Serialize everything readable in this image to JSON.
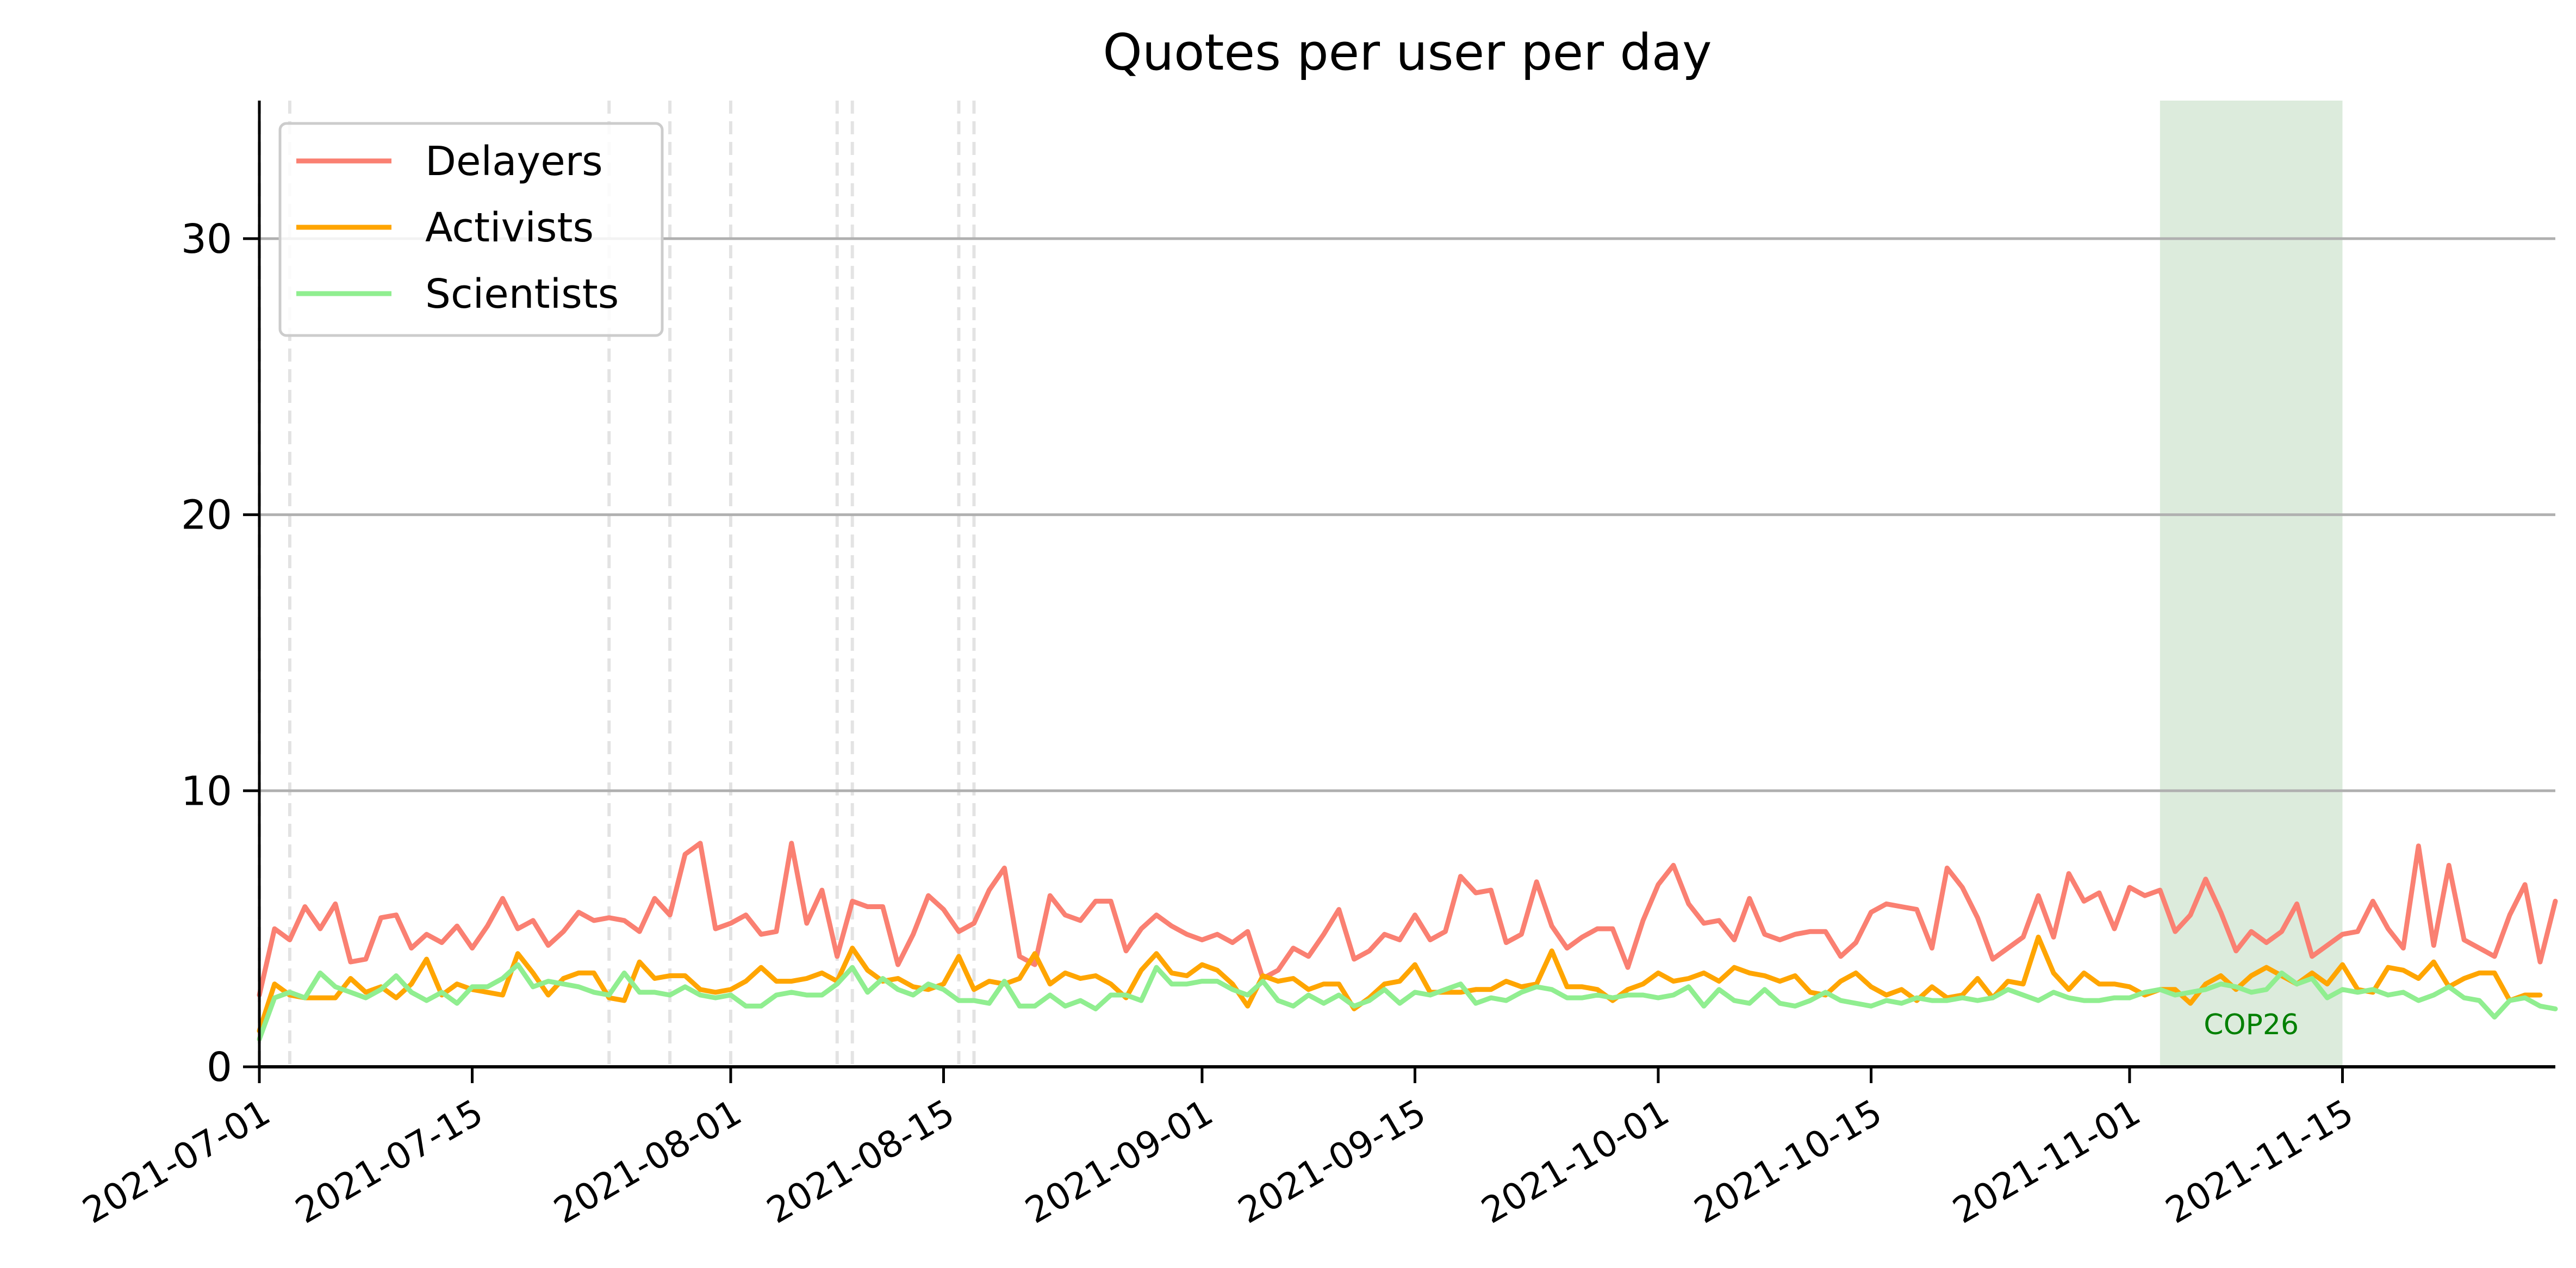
{
  "chart_data": {
    "type": "line",
    "title": "Quotes per user per day",
    "xlabel": "",
    "ylabel": "",
    "x_start": "2021-07-01",
    "x_end": "2021-11-29",
    "x_ticks": [
      "2021-07-01",
      "2021-07-15",
      "2021-08-01",
      "2021-08-15",
      "2021-09-01",
      "2021-09-15",
      "2021-10-01",
      "2021-10-15",
      "2021-11-01",
      "2021-11-15"
    ],
    "ylim": [
      0,
      35
    ],
    "y_ticks": [
      0,
      10,
      20,
      30
    ],
    "grid": "horizontal",
    "legend_position": "top-left",
    "colors": {
      "Delayers": "#fa8072",
      "Activists": "#ffa500",
      "Scientists": "#90ee90",
      "highlight": "#dcebdc",
      "annotation": "#008000"
    },
    "highlight_span": {
      "start": "2021-11-03",
      "end": "2021-11-15",
      "label": "COP26"
    },
    "vertical_markers": [
      "2021-07-01",
      "2021-07-03",
      "2021-07-24",
      "2021-07-28",
      "2021-08-01",
      "2021-08-08",
      "2021-08-09",
      "2021-08-16",
      "2021-08-17"
    ],
    "series": [
      {
        "name": "Delayers",
        "values": [
          2.6,
          5.0,
          4.6,
          5.8,
          5.0,
          5.9,
          3.8,
          3.9,
          5.4,
          5.5,
          4.3,
          4.8,
          4.5,
          5.1,
          4.3,
          5.1,
          6.1,
          5.0,
          5.3,
          4.4,
          4.9,
          5.6,
          5.3,
          5.4,
          5.3,
          4.9,
          6.1,
          5.5,
          7.7,
          8.1,
          5.0,
          5.2,
          5.5,
          4.8,
          4.9,
          8.1,
          5.2,
          6.4,
          4.0,
          6.0,
          5.8,
          5.8,
          3.7,
          4.8,
          6.2,
          5.7,
          4.9,
          5.2,
          6.4,
          7.2,
          4.0,
          3.7,
          6.2,
          5.5,
          5.3,
          6.0,
          6.0,
          4.2,
          5.0,
          5.5,
          5.1,
          4.8,
          4.6,
          4.8,
          4.5,
          4.9,
          3.2,
          3.5,
          4.3,
          4.0,
          4.8,
          5.7,
          3.9,
          4.2,
          4.8,
          4.6,
          5.5,
          4.6,
          4.9,
          6.9,
          6.3,
          6.4,
          4.5,
          4.8,
          6.7,
          5.1,
          4.3,
          4.7,
          5.0,
          5.0,
          3.6,
          5.3,
          6.6,
          7.3,
          5.9,
          5.2,
          5.3,
          4.6,
          6.1,
          4.8,
          4.6,
          4.8,
          4.9,
          4.9,
          4.0,
          4.5,
          5.6,
          5.9,
          5.8,
          5.7,
          4.3,
          7.2,
          6.5,
          5.4,
          3.9,
          4.3,
          4.7,
          6.2,
          4.7,
          7.0,
          6.0,
          6.3,
          5.0,
          6.5,
          6.2,
          6.4,
          4.9,
          5.5,
          6.8,
          5.6,
          4.2,
          4.9,
          4.5,
          4.9,
          5.9,
          4.0,
          4.4,
          4.8,
          4.9,
          6.0,
          5.0,
          4.3,
          8.0,
          4.4,
          7.3,
          4.6,
          4.3,
          4.0,
          5.5,
          6.6,
          3.8,
          6.0
        ]
      },
      {
        "name": "Activists",
        "values": [
          1.3,
          3.0,
          2.6,
          2.5,
          2.5,
          2.5,
          3.2,
          2.7,
          2.9,
          2.5,
          3.0,
          3.9,
          2.6,
          3.0,
          2.8,
          2.7,
          2.6,
          4.1,
          3.4,
          2.6,
          3.2,
          3.4,
          3.4,
          2.5,
          2.4,
          3.8,
          3.2,
          3.3,
          3.3,
          2.8,
          2.7,
          2.8,
          3.1,
          3.6,
          3.1,
          3.1,
          3.2,
          3.4,
          3.1,
          4.3,
          3.5,
          3.1,
          3.2,
          2.9,
          2.8,
          3.0,
          4.0,
          2.8,
          3.1,
          3.0,
          3.2,
          4.1,
          3.0,
          3.4,
          3.2,
          3.3,
          3.0,
          2.5,
          3.5,
          4.1,
          3.4,
          3.3,
          3.7,
          3.5,
          3.0,
          2.2,
          3.3,
          3.1,
          3.2,
          2.8,
          3.0,
          3.0,
          2.1,
          2.5,
          3.0,
          3.1,
          3.7,
          2.7,
          2.7,
          2.7,
          2.8,
          2.8,
          3.1,
          2.9,
          3.0,
          4.2,
          2.9,
          2.9,
          2.8,
          2.4,
          2.8,
          3.0,
          3.4,
          3.1,
          3.2,
          3.4,
          3.1,
          3.6,
          3.4,
          3.3,
          3.1,
          3.3,
          2.7,
          2.6,
          3.1,
          3.4,
          2.9,
          2.6,
          2.8,
          2.4,
          2.9,
          2.5,
          2.6,
          3.2,
          2.5,
          3.1,
          3.0,
          4.7,
          3.4,
          2.8,
          3.4,
          3.0,
          3.0,
          2.9,
          2.6,
          2.8,
          2.8,
          2.3,
          3.0,
          3.3,
          2.8,
          3.3,
          3.6,
          3.3,
          3.0,
          3.4,
          3.0,
          3.7,
          2.8,
          2.7,
          3.6,
          3.5,
          3.2,
          3.8,
          2.9,
          3.2,
          3.4,
          3.4,
          2.4,
          2.6,
          2.6
        ]
      },
      {
        "name": "Scientists",
        "values": [
          1.0,
          2.5,
          2.7,
          2.5,
          3.4,
          2.9,
          2.7,
          2.5,
          2.8,
          3.3,
          2.7,
          2.4,
          2.7,
          2.3,
          2.9,
          2.9,
          3.2,
          3.7,
          2.9,
          3.1,
          3.0,
          2.9,
          2.7,
          2.6,
          3.4,
          2.7,
          2.7,
          2.6,
          2.9,
          2.6,
          2.5,
          2.6,
          2.2,
          2.2,
          2.6,
          2.7,
          2.6,
          2.6,
          3.0,
          3.6,
          2.7,
          3.2,
          2.8,
          2.6,
          3.0,
          2.8,
          2.4,
          2.4,
          2.3,
          3.1,
          2.2,
          2.2,
          2.6,
          2.2,
          2.4,
          2.1,
          2.6,
          2.6,
          2.4,
          3.6,
          3.0,
          3.0,
          3.1,
          3.1,
          2.8,
          2.6,
          3.1,
          2.4,
          2.2,
          2.6,
          2.3,
          2.6,
          2.2,
          2.4,
          2.8,
          2.3,
          2.7,
          2.6,
          2.8,
          3.0,
          2.3,
          2.5,
          2.4,
          2.7,
          2.9,
          2.8,
          2.5,
          2.5,
          2.6,
          2.5,
          2.6,
          2.6,
          2.5,
          2.6,
          2.9,
          2.2,
          2.8,
          2.4,
          2.3,
          2.8,
          2.3,
          2.2,
          2.4,
          2.7,
          2.4,
          2.3,
          2.2,
          2.4,
          2.3,
          2.5,
          2.4,
          2.4,
          2.5,
          2.4,
          2.5,
          2.8,
          2.6,
          2.4,
          2.7,
          2.5,
          2.4,
          2.4,
          2.5,
          2.5,
          2.7,
          2.8,
          2.6,
          2.7,
          2.8,
          3.0,
          2.9,
          2.7,
          2.8,
          3.4,
          3.0,
          3.2,
          2.5,
          2.8,
          2.7,
          2.8,
          2.6,
          2.7,
          2.4,
          2.6,
          2.9,
          2.5,
          2.4,
          1.8,
          2.4,
          2.5,
          2.2,
          2.1
        ]
      }
    ]
  }
}
